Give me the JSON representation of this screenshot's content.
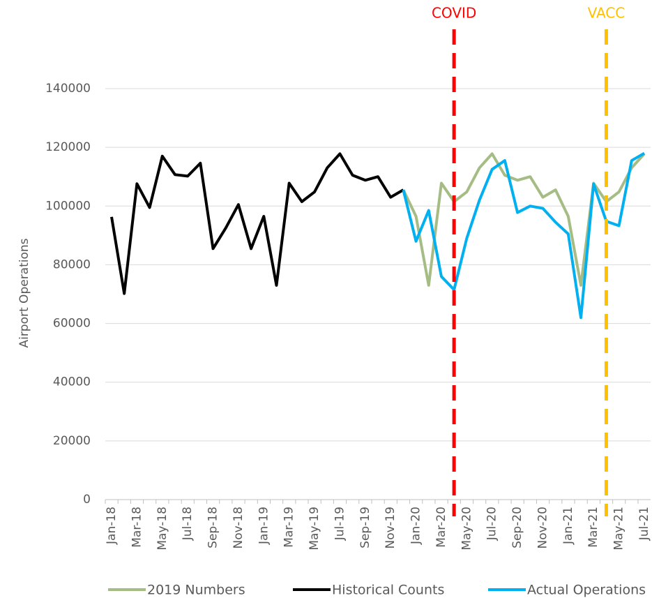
{
  "chart_data": {
    "type": "line",
    "y_label": "Airport Operations",
    "categories": [
      "Jan-18",
      null,
      "Mar-18",
      null,
      "May-18",
      null,
      "Jul-18",
      null,
      "Sep-18",
      null,
      "Nov-18",
      null,
      "Jan-19",
      null,
      "Mar-19",
      null,
      "May-19",
      null,
      "Jul-19",
      null,
      "Sep-19",
      null,
      "Nov-19",
      null,
      "Jan-20",
      null,
      "Mar-20",
      null,
      "May-20",
      null,
      "Jul-20",
      null,
      "Sep-20",
      null,
      "Nov-20",
      null,
      "Jan-21",
      null,
      "Mar-21",
      null,
      "May-21",
      null,
      "Jul-21"
    ],
    "series": [
      {
        "name": "2019 Numbers",
        "color": "#a5bd85",
        "values": [
          null,
          null,
          null,
          null,
          null,
          null,
          null,
          null,
          null,
          null,
          null,
          null,
          null,
          null,
          null,
          null,
          null,
          null,
          null,
          null,
          null,
          null,
          null,
          105500,
          96500,
          73000,
          107800,
          101500,
          104800,
          113000,
          117800,
          110500,
          108800,
          110000,
          103000,
          105500,
          96500,
          73000,
          107800,
          101500,
          104800,
          113000,
          117800
        ]
      },
      {
        "name": "Historical Counts",
        "color": "#000000",
        "values": [
          96300,
          70200,
          107600,
          99500,
          117000,
          110700,
          110200,
          114600,
          85500,
          92500,
          100500,
          85500,
          96500,
          73000,
          107800,
          101500,
          104800,
          113000,
          117800,
          110500,
          108800,
          110000,
          103000,
          105500,
          null,
          null,
          null,
          null,
          null,
          null,
          null,
          null,
          null,
          null,
          null,
          null,
          null,
          null,
          null,
          null,
          null,
          null,
          null
        ]
      },
      {
        "name": "Actual Operations",
        "color": "#00b0f0",
        "values": [
          null,
          null,
          null,
          null,
          null,
          null,
          null,
          null,
          null,
          null,
          null,
          null,
          null,
          null,
          null,
          null,
          null,
          null,
          null,
          null,
          null,
          null,
          null,
          105500,
          88000,
          98500,
          76000,
          71500,
          89000,
          102000,
          112500,
          115500,
          97800,
          100000,
          99200,
          94500,
          90500,
          62000,
          107500,
          94800,
          93300,
          115500,
          118000
        ]
      }
    ],
    "annotations": [
      {
        "label": "COVID",
        "x": 27,
        "color": "#ff0000"
      },
      {
        "label": "VACC",
        "x": 39,
        "color": "#ffc000"
      }
    ],
    "ylim": [
      0,
      140000
    ],
    "yticks": [
      0,
      20000,
      40000,
      60000,
      80000,
      100000,
      120000,
      140000
    ],
    "grid": true,
    "legend": "bottom"
  }
}
